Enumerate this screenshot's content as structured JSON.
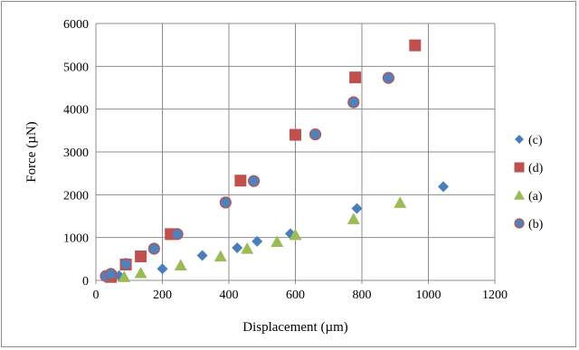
{
  "chart_data": {
    "type": "scatter",
    "title": "",
    "xlabel": "Displacement (µm)",
    "ylabel": "Force (µN)",
    "xlim": [
      0,
      1200
    ],
    "ylim": [
      0,
      6000
    ],
    "x_ticks": [
      "0",
      "200",
      "400",
      "600",
      "800",
      "1000",
      "1200"
    ],
    "y_ticks": [
      "0",
      "1000",
      "2000",
      "3000",
      "4000",
      "5000",
      "6000"
    ],
    "grid": true,
    "legend_position": "right",
    "series": [
      {
        "name": "(c)",
        "marker": "diamond",
        "color": "#4a7ebb",
        "points": [
          [
            40,
            90
          ],
          [
            70,
            110
          ],
          [
            135,
            560
          ],
          [
            200,
            270
          ],
          [
            320,
            580
          ],
          [
            425,
            760
          ],
          [
            485,
            910
          ],
          [
            585,
            1090
          ],
          [
            785,
            1680
          ],
          [
            1045,
            2190
          ]
        ]
      },
      {
        "name": "(d)",
        "marker": "square",
        "color": "#c0504d",
        "points": [
          [
            45,
            80
          ],
          [
            90,
            370
          ],
          [
            135,
            560
          ],
          [
            225,
            1080
          ],
          [
            435,
            2330
          ],
          [
            600,
            3400
          ],
          [
            780,
            4740
          ],
          [
            960,
            5490
          ]
        ]
      },
      {
        "name": "(a)",
        "marker": "triangle",
        "color": "#9bbb59",
        "points": [
          [
            85,
            80
          ],
          [
            135,
            170
          ],
          [
            255,
            350
          ],
          [
            375,
            560
          ],
          [
            455,
            740
          ],
          [
            545,
            900
          ],
          [
            600,
            1060
          ],
          [
            775,
            1430
          ],
          [
            915,
            1810
          ]
        ]
      },
      {
        "name": "(b)",
        "marker": "circle",
        "color": "#4f81bd",
        "edge": "#c0504d",
        "points": [
          [
            30,
            100
          ],
          [
            45,
            150
          ],
          [
            90,
            380
          ],
          [
            175,
            740
          ],
          [
            245,
            1080
          ],
          [
            390,
            1820
          ],
          [
            475,
            2320
          ],
          [
            660,
            3410
          ],
          [
            775,
            4160
          ],
          [
            880,
            4730
          ]
        ]
      }
    ]
  }
}
